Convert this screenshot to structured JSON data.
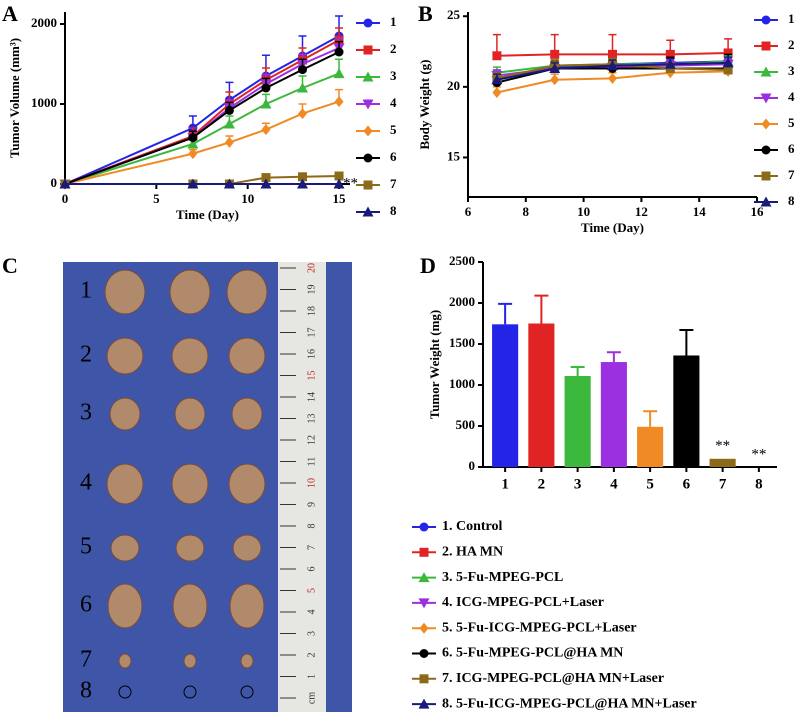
{
  "panels": [
    "A",
    "B",
    "C",
    "D"
  ],
  "photo": {
    "row_labels": [
      "1",
      "2",
      "3",
      "4",
      "5",
      "6",
      "7",
      "8"
    ],
    "ruler_labels": [
      "cm",
      "1",
      "2",
      "3",
      "4",
      "5",
      "6",
      "7",
      "8",
      "9",
      "10",
      "11",
      "12",
      "13",
      "14",
      "15",
      "16",
      "17",
      "18",
      "19",
      "20"
    ]
  },
  "chart_data": [
    {
      "type": "line",
      "xlabel": "Time (Day)",
      "ylabel": "Tumor Volume (mm³)",
      "x": [
        0,
        7,
        9,
        11,
        13,
        15
      ],
      "xlim": [
        0,
        15.6
      ],
      "xticks": [
        0,
        5,
        10,
        15
      ],
      "ylim": [
        0,
        2150
      ],
      "yticks": [
        0,
        1000,
        2000
      ],
      "annotation": "**",
      "series": [
        {
          "name": "1",
          "color": "#2424e6",
          "marker": "circle",
          "values": [
            0,
            700,
            1050,
            1350,
            1600,
            1850
          ],
          "errors": [
            0,
            150,
            220,
            260,
            250,
            250
          ]
        },
        {
          "name": "2",
          "color": "#e02424",
          "marker": "square",
          "values": [
            0,
            600,
            1000,
            1300,
            1550,
            1800
          ],
          "errors": [
            0,
            100,
            150,
            150,
            150,
            150
          ]
        },
        {
          "name": "3",
          "color": "#3cb83c",
          "marker": "triangle-up",
          "values": [
            0,
            500,
            750,
            1000,
            1200,
            1380
          ],
          "errors": [
            0,
            80,
            100,
            120,
            150,
            180
          ]
        },
        {
          "name": "4",
          "color": "#9b30e0",
          "marker": "triangle-down",
          "values": [
            0,
            580,
            950,
            1250,
            1500,
            1700
          ],
          "errors": [
            0,
            80,
            100,
            120,
            120,
            120
          ]
        },
        {
          "name": "5",
          "color": "#f08a24",
          "marker": "diamond",
          "values": [
            0,
            380,
            520,
            680,
            880,
            1030
          ],
          "errors": [
            0,
            50,
            80,
            80,
            120,
            150
          ]
        },
        {
          "name": "6",
          "color": "#000000",
          "marker": "circle",
          "values": [
            0,
            580,
            920,
            1200,
            1430,
            1650
          ],
          "errors": [
            0,
            80,
            100,
            120,
            130,
            130
          ]
        },
        {
          "name": "7",
          "color": "#8b6a1a",
          "marker": "square",
          "values": [
            0,
            0,
            0,
            80,
            90,
            100
          ],
          "errors": [
            0,
            0,
            0,
            10,
            10,
            10
          ]
        },
        {
          "name": "8",
          "color": "#1a1a7a",
          "marker": "triangle-up",
          "values": [
            0,
            0,
            0,
            0,
            0,
            0
          ],
          "errors": [
            0,
            0,
            0,
            0,
            0,
            0
          ]
        }
      ]
    },
    {
      "type": "line",
      "xlabel": "Time (Day)",
      "ylabel": "Body Weight (g)",
      "x": [
        7,
        9,
        11,
        13,
        15
      ],
      "xlim": [
        6,
        16
      ],
      "xticks": [
        6,
        8,
        10,
        12,
        14,
        16
      ],
      "ylim": [
        12.2,
        25.3
      ],
      "yticks": [
        15,
        20,
        25
      ],
      "series": [
        {
          "name": "1",
          "color": "#2424e6",
          "marker": "circle",
          "values": [
            20.6,
            21.4,
            21.6,
            21.7,
            21.8
          ],
          "errors": [
            0.5,
            0.4,
            0.4,
            0.4,
            0.4
          ]
        },
        {
          "name": "2",
          "color": "#e02424",
          "marker": "square",
          "values": [
            22.2,
            22.3,
            22.3,
            22.3,
            22.4
          ],
          "errors": [
            1.5,
            1.4,
            1.4,
            1.0,
            1.0
          ]
        },
        {
          "name": "3",
          "color": "#3cb83c",
          "marker": "triangle-up",
          "values": [
            21.0,
            21.5,
            21.6,
            21.6,
            21.8
          ],
          "errors": [
            0.4,
            0.4,
            0.4,
            0.4,
            0.4
          ]
        },
        {
          "name": "4",
          "color": "#9b30e0",
          "marker": "triangle-down",
          "values": [
            20.8,
            21.3,
            21.4,
            21.5,
            21.6
          ],
          "errors": [
            0.4,
            0.4,
            0.4,
            0.4,
            0.4
          ]
        },
        {
          "name": "5",
          "color": "#f08a24",
          "marker": "diamond",
          "values": [
            19.6,
            20.5,
            20.6,
            21.0,
            21.1
          ],
          "errors": [
            0.4,
            0.4,
            0.4,
            0.4,
            0.4
          ]
        },
        {
          "name": "6",
          "color": "#000000",
          "marker": "circle",
          "values": [
            20.3,
            21.3,
            21.3,
            21.3,
            21.3
          ],
          "errors": [
            0.5,
            0.5,
            0.5,
            0.8,
            1.0
          ]
        },
        {
          "name": "7",
          "color": "#8b6a1a",
          "marker": "square",
          "values": [
            20.6,
            21.5,
            21.6,
            21.3,
            21.2
          ],
          "errors": [
            0.4,
            0.4,
            0.4,
            0.4,
            0.4
          ]
        },
        {
          "name": "8",
          "color": "#1a1a7a",
          "marker": "triangle-up",
          "values": [
            20.5,
            21.3,
            21.5,
            21.6,
            21.7
          ],
          "errors": [
            0.4,
            0.4,
            0.4,
            0.4,
            0.4
          ]
        }
      ]
    },
    {
      "type": "bar",
      "ylabel": "Tumor Weight (mg)",
      "categories": [
        "1",
        "2",
        "3",
        "4",
        "5",
        "6",
        "7",
        "8"
      ],
      "values": [
        1740,
        1750,
        1110,
        1280,
        490,
        1360,
        100,
        0
      ],
      "errors": [
        250,
        340,
        110,
        120,
        190,
        310,
        0,
        0
      ],
      "colors": [
        "#2424e6",
        "#e02424",
        "#3cb83c",
        "#9b30e0",
        "#f08a24",
        "#000000",
        "#8b6a1a",
        "#1a1a7a"
      ],
      "ylim": [
        0,
        2500
      ],
      "yticks": [
        0,
        500,
        1000,
        1500,
        2000,
        2500
      ],
      "annotation": "**",
      "legend": [
        {
          "name": "1. Control",
          "color": "#2424e6",
          "marker": "circle"
        },
        {
          "name": "2. HA MN",
          "color": "#e02424",
          "marker": "square"
        },
        {
          "name": "3. 5-Fu-MPEG-PCL",
          "color": "#3cb83c",
          "marker": "triangle-up"
        },
        {
          "name": "4. ICG-MPEG-PCL+Laser",
          "color": "#9b30e0",
          "marker": "triangle-down"
        },
        {
          "name": "5. 5-Fu-ICG-MPEG-PCL+Laser",
          "color": "#f08a24",
          "marker": "diamond"
        },
        {
          "name": "6. 5-Fu-MPEG-PCL@HA MN",
          "color": "#000000",
          "marker": "circle"
        },
        {
          "name": "7. ICG-MPEG-PCL@HA MN+Laser",
          "color": "#8b6a1a",
          "marker": "square"
        },
        {
          "name": "8. 5-Fu-ICG-MPEG-PCL@HA MN+Laser",
          "color": "#1a1a7a",
          "marker": "triangle-up"
        }
      ]
    }
  ]
}
